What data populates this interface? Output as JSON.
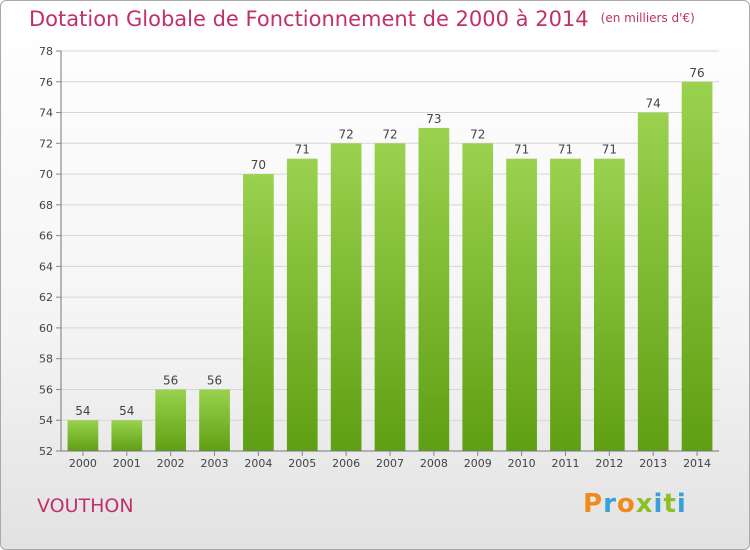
{
  "chart_data": {
    "type": "bar",
    "title": "Dotation Globale de Fonctionnement de 2000 à 2014",
    "subtitle": "(en milliers d'€)",
    "categories": [
      "2000",
      "2001",
      "2002",
      "2003",
      "2004",
      "2005",
      "2006",
      "2007",
      "2008",
      "2009",
      "2010",
      "2011",
      "2012",
      "2013",
      "2014"
    ],
    "values": [
      54,
      54,
      56,
      56,
      70,
      71,
      72,
      72,
      73,
      72,
      71,
      71,
      71,
      74,
      76
    ],
    "ylim": [
      52,
      78
    ],
    "yticks": [
      52,
      54,
      56,
      58,
      60,
      62,
      64,
      66,
      68,
      70,
      72,
      74,
      76,
      78
    ],
    "grid": true,
    "colors": {
      "bar_light": "#9ad24f",
      "bar_dark": "#5f9f13",
      "title": "#c0306a"
    }
  },
  "footer": {
    "place": "VOUTHON",
    "logo": "Proxiti",
    "logo_colors": [
      "#f08a1c",
      "#3aa0d8",
      "#f08a1c",
      "#8dbf2a",
      "#3aa0d8",
      "#8dbf2a",
      "#3aa0d8"
    ]
  }
}
